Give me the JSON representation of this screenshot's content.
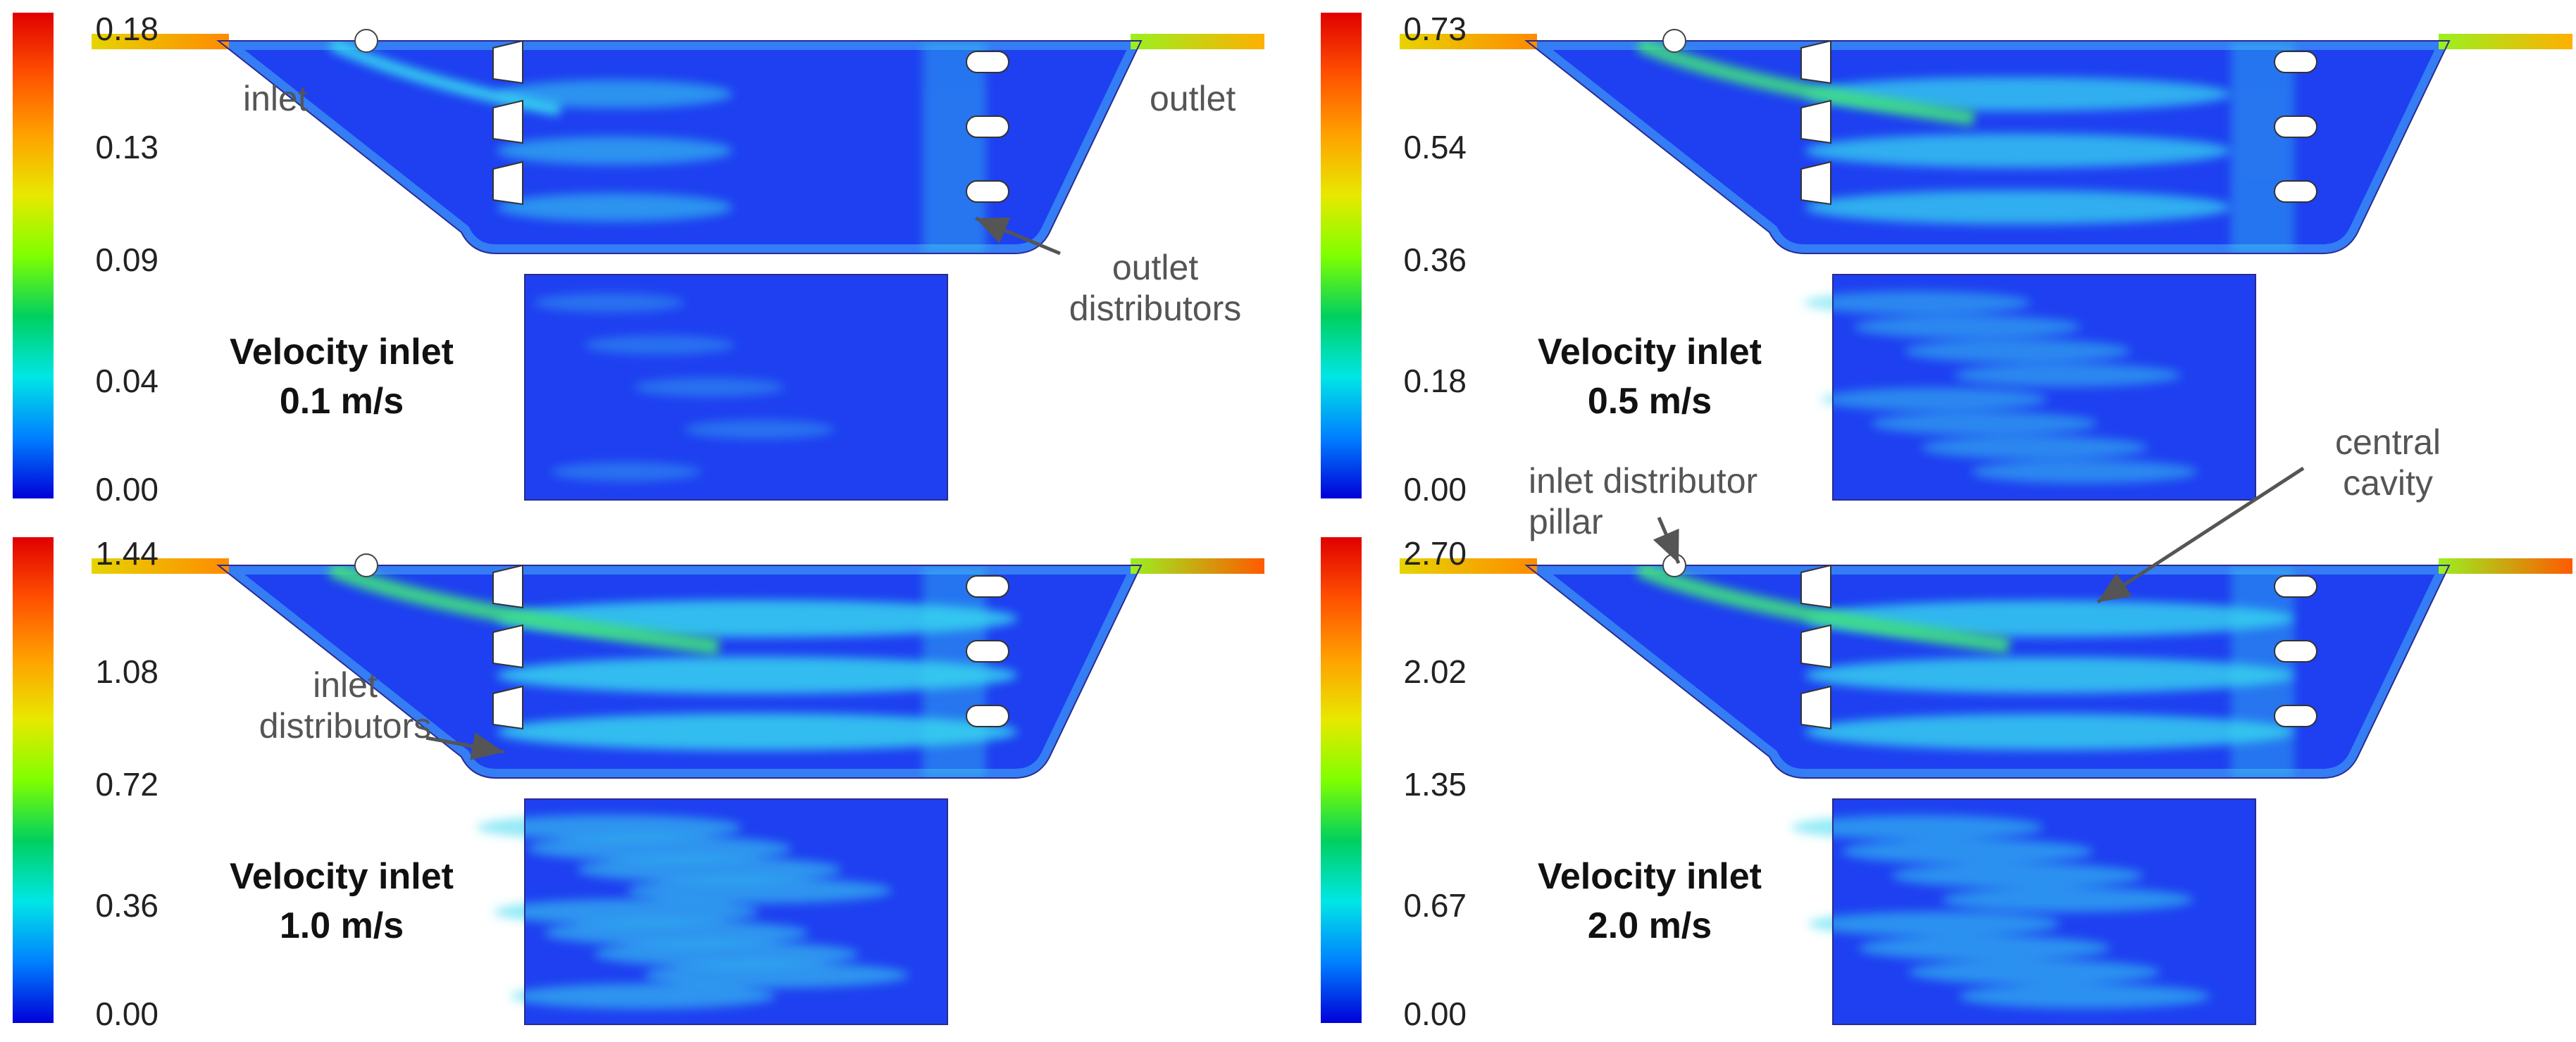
{
  "annotations": {
    "inlet": "inlet",
    "outlet": "outlet",
    "outlet_distributors": [
      "outlet",
      "distributors"
    ],
    "inlet_distributors": [
      "inlet",
      "distributors"
    ],
    "inlet_distributor_pillar": [
      "inlet distributor",
      "pillar"
    ],
    "central_cavity": [
      "central",
      "cavity"
    ]
  },
  "panels": [
    {
      "title": "Velocity inlet",
      "speed": "0.1 m/s",
      "ticks": [
        "0.18",
        "0.13",
        "0.09",
        "0.04",
        "0.00"
      ],
      "intensity": 0.15
    },
    {
      "title": "Velocity inlet",
      "speed": "0.5 m/s",
      "ticks": [
        "0.73",
        "0.54",
        "0.36",
        "0.18",
        "0.00"
      ],
      "intensity": 0.45
    },
    {
      "title": "Velocity inlet",
      "speed": "1.0 m/s",
      "ticks": [
        "1.44",
        "1.08",
        "0.72",
        "0.36",
        "0.00"
      ],
      "intensity": 0.6
    },
    {
      "title": "Velocity inlet",
      "speed": "2.0 m/s",
      "ticks": [
        "2.70",
        "2.02",
        "1.35",
        "0.67",
        "0.00"
      ],
      "intensity": 0.55
    }
  ],
  "colors": {
    "colormap": [
      "#0000d8",
      "#0080ff",
      "#00e6e6",
      "#00d060",
      "#80ff00",
      "#e8e800",
      "#ffa000",
      "#ff5000",
      "#e00000"
    ],
    "background_flow": "#1e40f0",
    "pale_flow": "#3a8cf5",
    "jet_flow": "#39d9ef"
  }
}
